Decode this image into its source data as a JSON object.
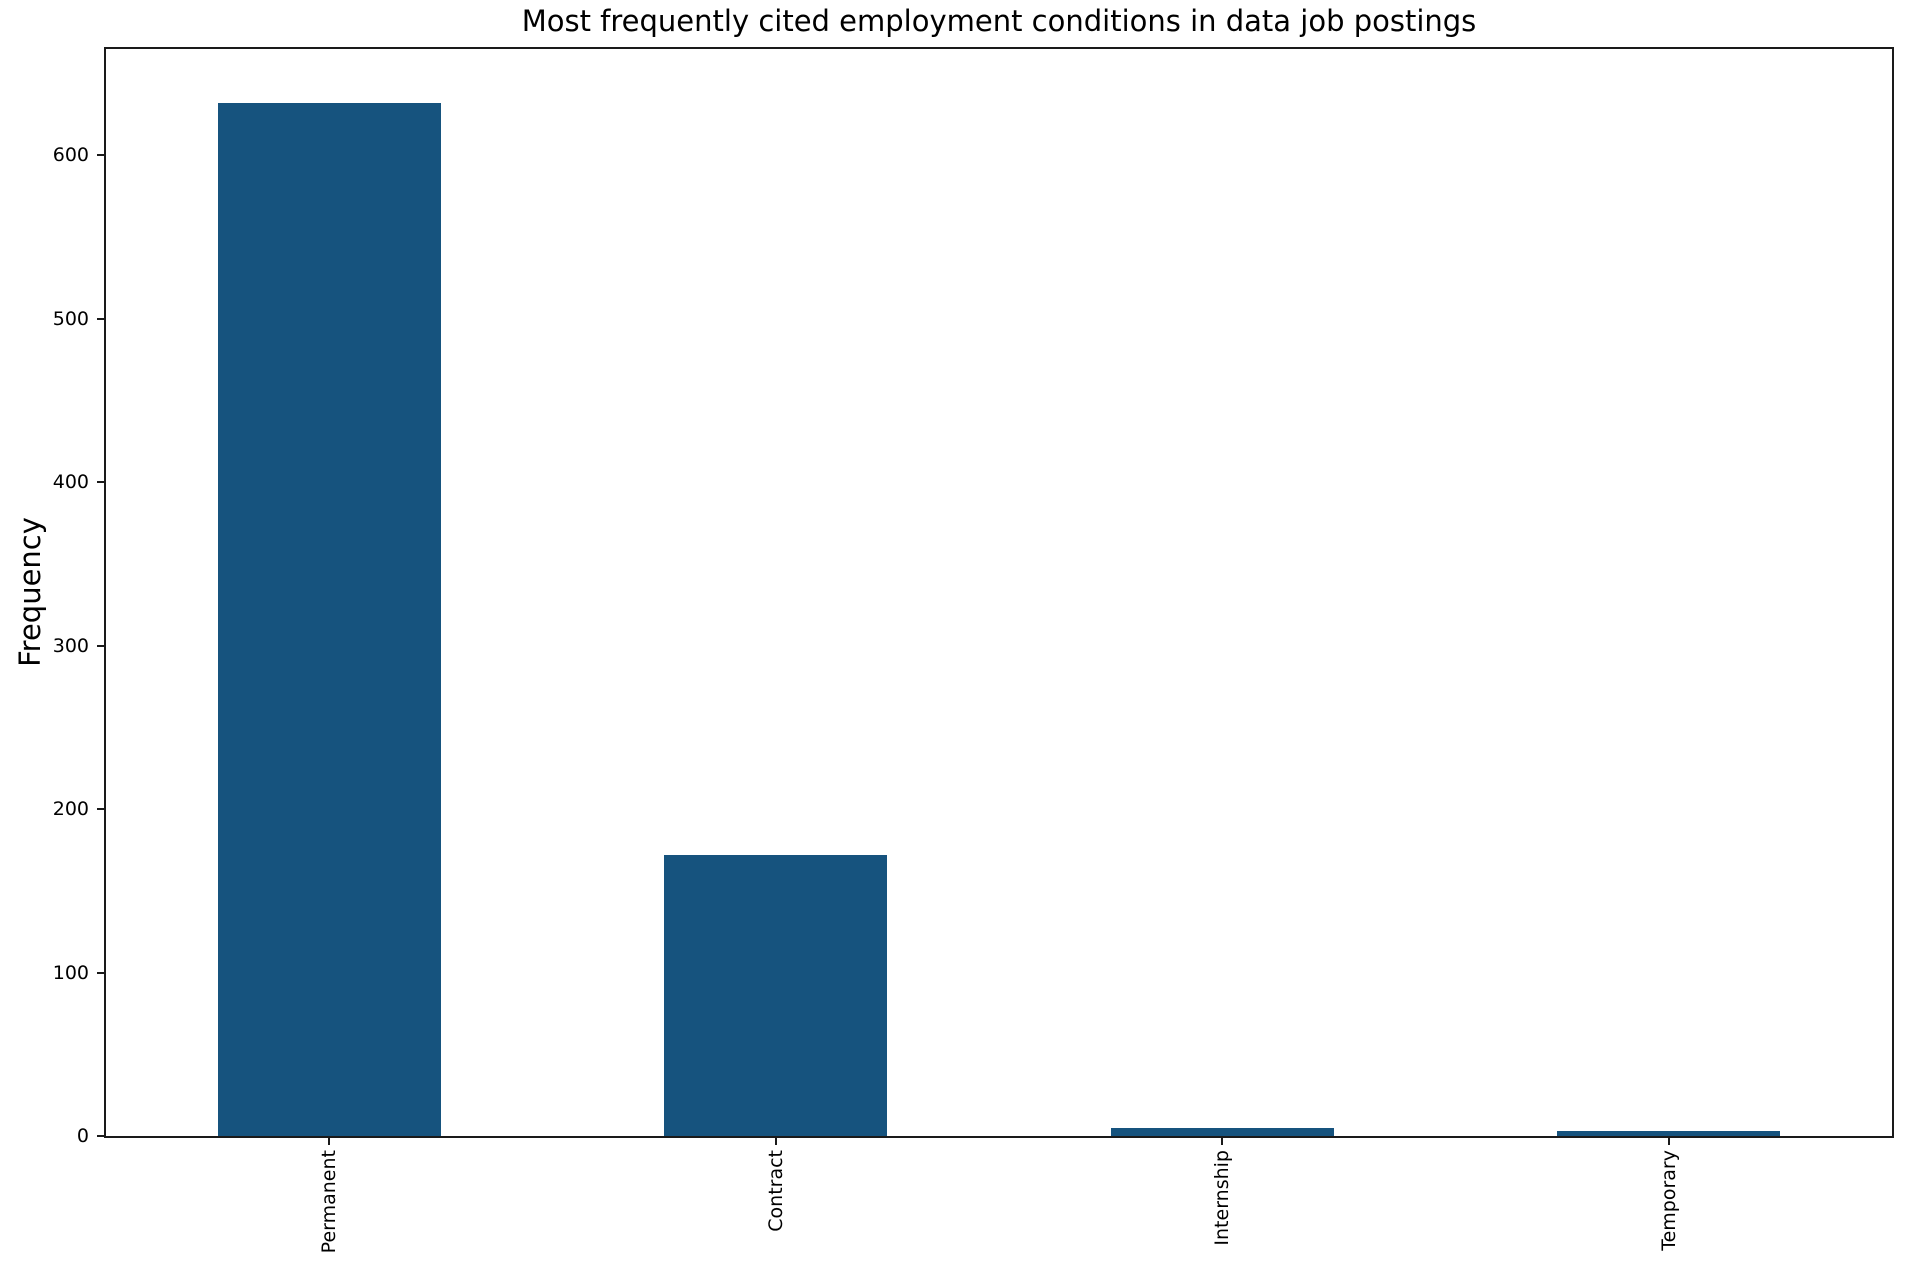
{
  "figure": {
    "background": "#ffffff",
    "text_color": "#000000",
    "spine_color": "#1a1a1a"
  },
  "chart_data": {
    "type": "bar",
    "title": "Most frequently cited employment conditions in data job postings",
    "xlabel": "",
    "ylabel": "Frequency",
    "categories": [
      "Permanent",
      "Contract",
      "Internship",
      "Temporary"
    ],
    "values": [
      632,
      172,
      5,
      3
    ],
    "yticks": [
      0,
      100,
      200,
      300,
      400,
      500,
      600
    ],
    "ylim": [
      0,
      665
    ],
    "bar_color": "#16537e",
    "bar_width_fraction": 0.5,
    "x_tick_rotation": 90,
    "grid": false,
    "legend": "none"
  }
}
